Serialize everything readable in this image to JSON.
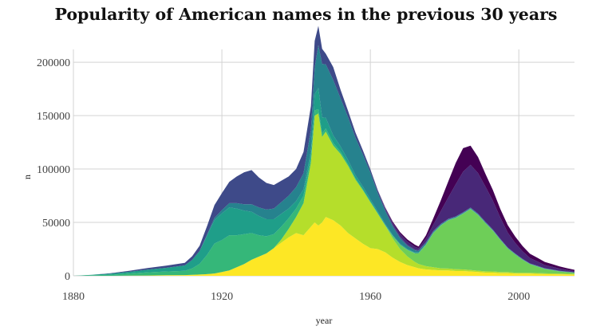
{
  "chart_data": {
    "type": "area",
    "stacked": true,
    "title": "Popularity of American names in the previous 30 years",
    "xlabel": "year",
    "ylabel": "n",
    "xlim": [
      1880,
      2015
    ],
    "ylim": [
      0,
      212000
    ],
    "grid": true,
    "legend": "none",
    "x_ticks": [
      "1880",
      "1920",
      "1960",
      "2000"
    ],
    "y_ticks": [
      "0",
      "50000",
      "100000",
      "150000",
      "200000"
    ],
    "x": [
      1880,
      1885,
      1890,
      1895,
      1900,
      1905,
      1910,
      1912,
      1914,
      1916,
      1918,
      1920,
      1922,
      1924,
      1926,
      1928,
      1930,
      1932,
      1934,
      1936,
      1938,
      1940,
      1942,
      1944,
      1945,
      1946,
      1947,
      1948,
      1950,
      1952,
      1954,
      1956,
      1958,
      1960,
      1962,
      1964,
      1966,
      1968,
      1970,
      1972,
      1973,
      1975,
      1977,
      1979,
      1981,
      1983,
      1985,
      1987,
      1989,
      1991,
      1993,
      1995,
      1997,
      1999,
      2001,
      2003,
      2005,
      2007,
      2009,
      2011,
      2013,
      2015
    ],
    "series": [
      {
        "color": "#fde725",
        "values": [
          0,
          0,
          0,
          200,
          300,
          500,
          700,
          900,
          1200,
          1600,
          2200,
          3500,
          5000,
          8000,
          11000,
          15000,
          18000,
          21000,
          26000,
          31000,
          36000,
          40000,
          38000,
          46000,
          50000,
          47000,
          50000,
          55000,
          52000,
          47000,
          40000,
          35000,
          30000,
          26000,
          25000,
          22000,
          17000,
          13000,
          10000,
          8000,
          7000,
          6000,
          5500,
          5000,
          5000,
          4500,
          4500,
          4000,
          3500,
          3000,
          3000,
          2500,
          2500,
          2000,
          2000,
          2000,
          1800,
          1600,
          1500,
          1400,
          1300,
          1200
        ]
      },
      {
        "color": "#b5de2b",
        "values": [
          0,
          0,
          0,
          0,
          0,
          0,
          0,
          0,
          0,
          0,
          0,
          0,
          0,
          0,
          0,
          0,
          0,
          0,
          0,
          3000,
          8000,
          15000,
          30000,
          60000,
          100000,
          105000,
          80000,
          80000,
          70000,
          67000,
          63000,
          55000,
          50000,
          43000,
          33000,
          25000,
          18000,
          12000,
          8000,
          5000,
          4000,
          3000,
          2500,
          2000,
          1800,
          1600,
          1500,
          1400,
          1300,
          1200,
          1100,
          1000,
          1000,
          900,
          900,
          800,
          800,
          700,
          700,
          600,
          600,
          500
        ]
      },
      {
        "color": "#6ece58",
        "values": [
          0,
          0,
          0,
          0,
          0,
          0,
          0,
          0,
          0,
          0,
          0,
          0,
          0,
          0,
          0,
          0,
          0,
          0,
          0,
          0,
          0,
          0,
          0,
          0,
          0,
          0,
          0,
          0,
          0,
          0,
          0,
          0,
          0,
          0,
          0,
          0,
          2000,
          4000,
          6000,
          8000,
          10000,
          20000,
          32000,
          40000,
          45000,
          48000,
          52000,
          57000,
          52000,
          45000,
          38000,
          30000,
          22000,
          17000,
          12000,
          8000,
          6000,
          4000,
          3000,
          2000,
          1500,
          1000
        ]
      },
      {
        "color": "#35b779",
        "values": [
          0,
          500,
          1000,
          2000,
          3000,
          3500,
          4000,
          6000,
          10000,
          18000,
          28000,
          30000,
          33000,
          30000,
          28000,
          25000,
          20000,
          16000,
          13000,
          12000,
          10000,
          8000,
          7000,
          6000,
          5000,
          4000,
          3500,
          3000,
          2500,
          2000,
          1500,
          1200,
          1000,
          800,
          700,
          600,
          500,
          400,
          400,
          300,
          300,
          300,
          200,
          200,
          200,
          200,
          200,
          200,
          200,
          200,
          200,
          100,
          100,
          100,
          100,
          100,
          100,
          100,
          100,
          100,
          100,
          100
        ]
      },
      {
        "color": "#1f9e89",
        "values": [
          0,
          500,
          1000,
          1500,
          2500,
          3500,
          5000,
          8000,
          12000,
          18000,
          22000,
          25000,
          26000,
          25000,
          22000,
          20000,
          18000,
          16000,
          14000,
          12000,
          9000,
          7000,
          6000,
          5000,
          15000,
          20000,
          15000,
          10000,
          7000,
          5000,
          4000,
          3000,
          2500,
          2000,
          1500,
          1000,
          800,
          700,
          600,
          500,
          500,
          400,
          400,
          300,
          300,
          300,
          300,
          300,
          200,
          200,
          200,
          200,
          200,
          200,
          200,
          100,
          100,
          100,
          100,
          100,
          100,
          100
        ]
      },
      {
        "color": "#26828e",
        "values": [
          0,
          0,
          0,
          0,
          0,
          0,
          0,
          0,
          0,
          1000,
          2000,
          3000,
          4000,
          5000,
          6000,
          7000,
          8000,
          9000,
          10000,
          11000,
          12000,
          13000,
          15000,
          20000,
          25000,
          40000,
          50000,
          50000,
          52000,
          45000,
          40000,
          35000,
          30000,
          25000,
          17000,
          12000,
          8000,
          5000,
          3000,
          2000,
          1500,
          1200,
          1000,
          800,
          700,
          700,
          700,
          700,
          700,
          700,
          600,
          600,
          500,
          500,
          500,
          400,
          400,
          300,
          300,
          300,
          200,
          200
        ]
      },
      {
        "color": "#3e4a89",
        "values": [
          0,
          0,
          500,
          1000,
          1500,
          2000,
          2500,
          3500,
          5000,
          8000,
          12000,
          16000,
          20000,
          25000,
          30000,
          32000,
          28000,
          25000,
          22000,
          20000,
          18000,
          17000,
          20000,
          22000,
          25000,
          18000,
          14000,
          10000,
          12000,
          8000,
          6000,
          5000,
          4000,
          3000,
          2500,
          2000,
          1500,
          1200,
          1000,
          800,
          700,
          600,
          500,
          400,
          400,
          300,
          300,
          300,
          300,
          200,
          200,
          200,
          200,
          200,
          200,
          200,
          200,
          200,
          200,
          200,
          200,
          200
        ]
      },
      {
        "color": "#482878",
        "values": [
          0,
          0,
          0,
          0,
          0,
          0,
          0,
          0,
          0,
          0,
          0,
          0,
          0,
          0,
          0,
          0,
          0,
          0,
          0,
          0,
          0,
          0,
          0,
          0,
          0,
          0,
          0,
          0,
          0,
          0,
          0,
          0,
          0,
          0,
          500,
          1000,
          2000,
          3000,
          3000,
          2500,
          2000,
          3500,
          6000,
          12000,
          20000,
          30000,
          38000,
          40000,
          38000,
          33000,
          27000,
          20000,
          14000,
          10000,
          7000,
          5000,
          4000,
          3000,
          2500,
          2000,
          1500,
          1000
        ]
      },
      {
        "color": "#440154",
        "values": [
          0,
          0,
          0,
          0,
          0,
          0,
          0,
          0,
          0,
          0,
          0,
          0,
          0,
          0,
          0,
          0,
          0,
          0,
          0,
          0,
          0,
          0,
          0,
          0,
          0,
          0,
          0,
          0,
          0,
          0,
          0,
          0,
          0,
          0,
          0,
          500,
          1000,
          1500,
          2000,
          2000,
          1500,
          3000,
          6000,
          10000,
          15000,
          20000,
          22000,
          18000,
          15000,
          12000,
          10000,
          8000,
          7000,
          6000,
          5000,
          4000,
          3500,
          3000,
          2500,
          2000,
          1600,
          1300
        ]
      }
    ]
  }
}
